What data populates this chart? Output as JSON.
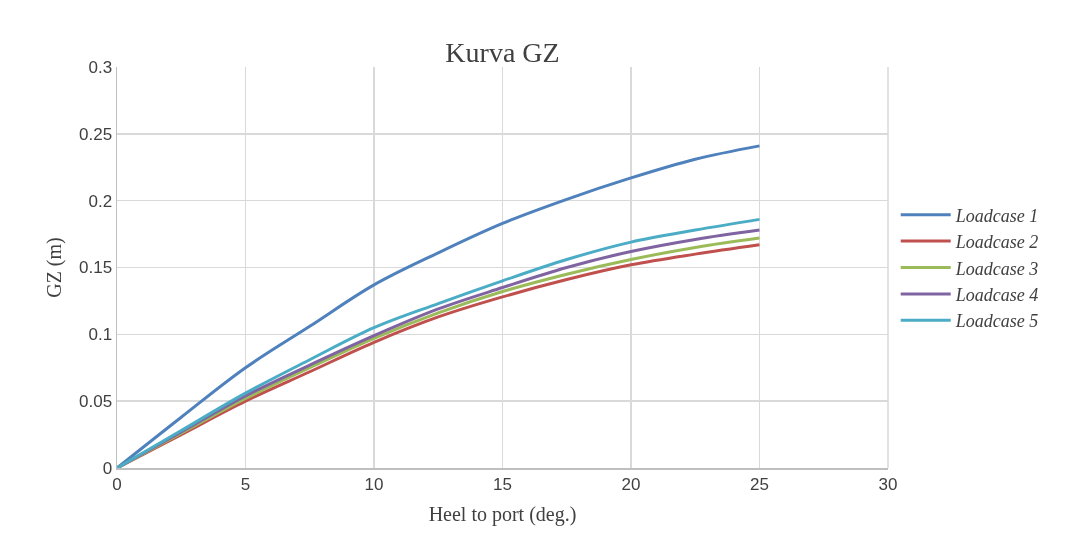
{
  "chart_data": {
    "type": "line",
    "title": "Kurva GZ",
    "xlabel": "Heel to port (deg.)",
    "ylabel": "GZ (m)",
    "x": [
      0,
      2.5,
      5,
      7.5,
      10,
      12.5,
      15,
      17.5,
      20,
      22.5,
      25
    ],
    "series": [
      {
        "name": "Loadcase 1",
        "color": "#4f81bd",
        "values": [
          0,
          0.038,
          0.075,
          0.106,
          0.137,
          0.161,
          0.183,
          0.201,
          0.217,
          0.231,
          0.241
        ]
      },
      {
        "name": "Loadcase 2",
        "color": "#c0504d",
        "values": [
          0,
          0.025,
          0.05,
          0.072,
          0.094,
          0.113,
          0.128,
          0.141,
          0.152,
          0.16,
          0.167
        ]
      },
      {
        "name": "Loadcase 3",
        "color": "#9bbb59",
        "values": [
          0,
          0.026,
          0.052,
          0.075,
          0.097,
          0.116,
          0.132,
          0.145,
          0.156,
          0.165,
          0.172
        ]
      },
      {
        "name": "Loadcase 4",
        "color": "#8064a2",
        "values": [
          0,
          0.027,
          0.054,
          0.077,
          0.099,
          0.119,
          0.135,
          0.15,
          0.162,
          0.171,
          0.178
        ]
      },
      {
        "name": "Loadcase 5",
        "color": "#4bacc6",
        "values": [
          0,
          0.028,
          0.056,
          0.081,
          0.105,
          0.123,
          0.14,
          0.156,
          0.169,
          0.178,
          0.186
        ]
      }
    ],
    "xlim": [
      0,
      30
    ],
    "xticks": [
      0,
      5,
      10,
      15,
      20,
      25,
      30
    ],
    "ylim": [
      0,
      0.3
    ],
    "yticks": [
      0,
      0.05,
      0.1,
      0.15,
      0.2,
      0.25,
      0.3
    ],
    "grid": true,
    "legend": "right",
    "marker": "none",
    "line_style": "solid"
  }
}
